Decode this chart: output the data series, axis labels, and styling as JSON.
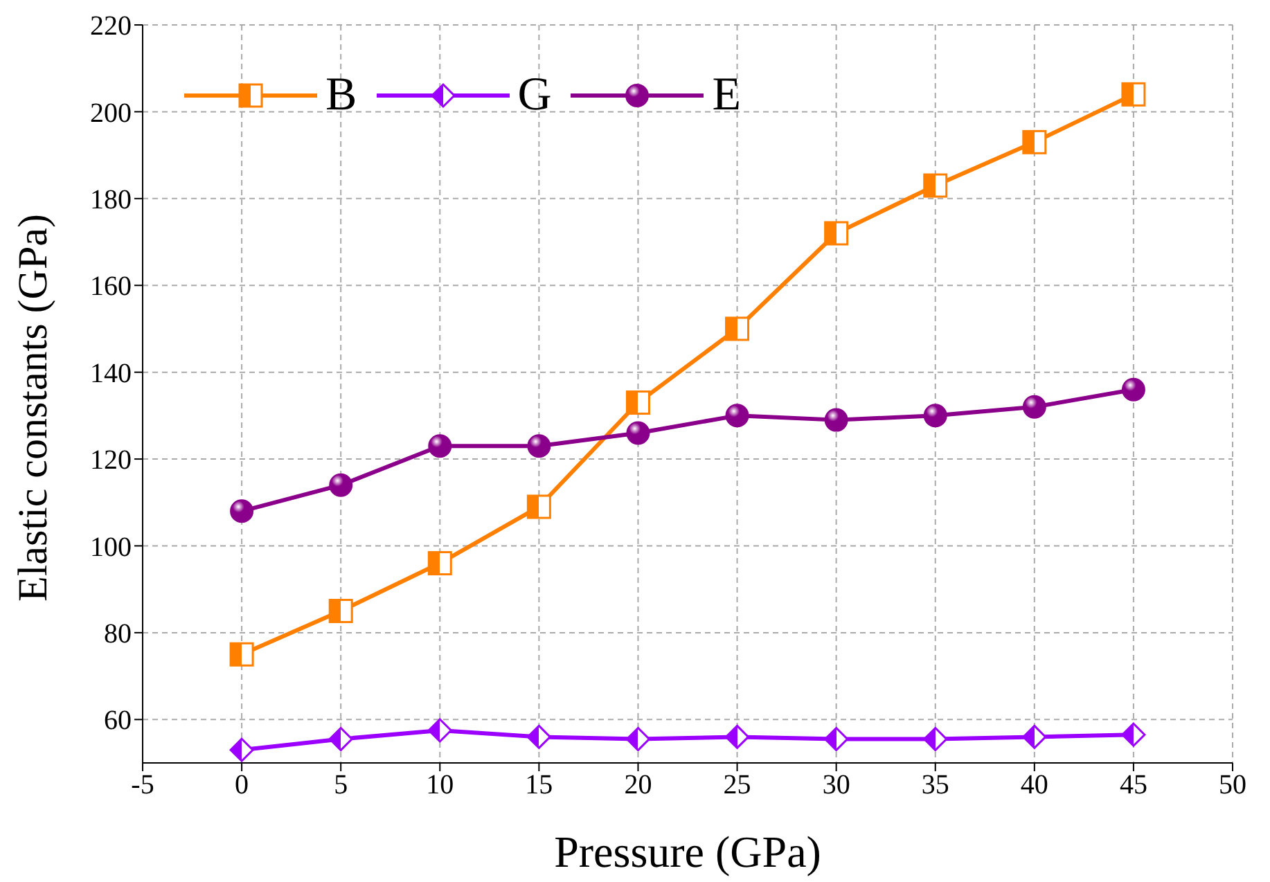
{
  "chart_data": {
    "type": "line",
    "xlabel": "Pressure (GPa)",
    "ylabel": "Elastic constants (GPa)",
    "x": [
      0,
      5,
      10,
      15,
      20,
      25,
      30,
      35,
      40,
      45
    ],
    "series": [
      {
        "name": "B",
        "color": "#ff7f00",
        "marker": "square",
        "values": [
          75,
          85,
          96,
          109,
          133,
          150,
          172,
          183,
          193,
          204
        ]
      },
      {
        "name": "G",
        "color": "#9b00ff",
        "marker": "diamond",
        "values": [
          53,
          55.5,
          57.5,
          56,
          55.5,
          56,
          55.5,
          55.5,
          56,
          56.5
        ]
      },
      {
        "name": "E",
        "color": "#8b008b",
        "marker": "circle",
        "values": [
          108,
          114,
          123,
          123,
          126,
          130,
          129,
          130,
          132,
          136
        ]
      }
    ],
    "xlim": [
      -5,
      50
    ],
    "xticks": [
      -5,
      0,
      5,
      10,
      15,
      20,
      25,
      30,
      35,
      40,
      45,
      50
    ],
    "ylim": [
      50,
      220
    ],
    "yticks": [
      60,
      80,
      100,
      120,
      140,
      160,
      180,
      200,
      220
    ],
    "grid": true,
    "legend": "top left",
    "line_style": "solid"
  }
}
